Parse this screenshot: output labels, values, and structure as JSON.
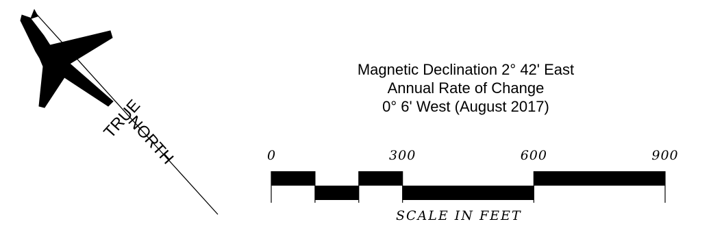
{
  "north_arrow": {
    "label_line1": "TRUE",
    "label_line2": "NORTH",
    "symbol": "airplane-icon"
  },
  "declination": {
    "line1": "Magnetic Declination 2° 42' East",
    "line2": "Annual Rate of Change",
    "line3": "0° 6' West (August 2017)"
  },
  "scale_bar": {
    "tick_labels": [
      "0",
      "300",
      "600",
      "900"
    ],
    "caption": "SCALE IN FEET",
    "units": "feet",
    "max_value": 900,
    "segments": [
      {
        "from": 0,
        "to": 100,
        "position": "upper"
      },
      {
        "from": 100,
        "to": 200,
        "position": "lower"
      },
      {
        "from": 200,
        "to": 300,
        "position": "upper"
      },
      {
        "from": 300,
        "to": 600,
        "position": "lower"
      },
      {
        "from": 600,
        "to": 900,
        "position": "upper"
      }
    ]
  }
}
